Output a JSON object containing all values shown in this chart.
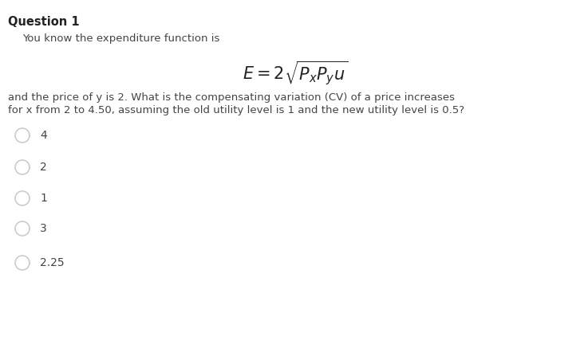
{
  "title": "Question 1",
  "line1": "You know the expenditure function is",
  "line2": "and the price of y is 2. What is the compensating variation (CV) of a price increases",
  "line3": "for x from 2 to 4.50, assuming the old utility level is 1 and the new utility level is 0.5?",
  "options": [
    "4",
    "2",
    "1",
    "3",
    "2.25"
  ],
  "background_color": "#ffffff",
  "text_color": "#444444",
  "circle_color": "#cccccc",
  "title_color": "#222222",
  "title_fontsize": 10.5,
  "body_fontsize": 9.5,
  "equation_fontsize": 15,
  "option_fontsize": 10
}
